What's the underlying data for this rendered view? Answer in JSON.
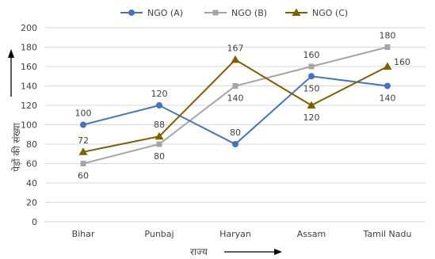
{
  "chart_data": {
    "type": "line",
    "categories": [
      "Bihar",
      "Punbaj",
      "Haryan",
      "Assam",
      "Tamil Nadu"
    ],
    "series": [
      {
        "name": "NGO (A)",
        "values": [
          100,
          120,
          80,
          150,
          140
        ],
        "color": "#4472C4",
        "marker": "circle"
      },
      {
        "name": "NGO (B)",
        "values": [
          60,
          80,
          140,
          160,
          180
        ],
        "color": "#A5A5A5",
        "marker": "square"
      },
      {
        "name": "NGO (C)",
        "values": [
          72,
          88,
          167,
          120,
          160
        ],
        "color": "#7F6000",
        "marker": "triangle"
      }
    ],
    "data_labels": [
      {
        "series": 0,
        "point": 0,
        "text": "100",
        "pos": "above"
      },
      {
        "series": 0,
        "point": 1,
        "text": "120",
        "pos": "above"
      },
      {
        "series": 0,
        "point": 2,
        "text": "80",
        "pos": "above"
      },
      {
        "series": 0,
        "point": 3,
        "text": "150",
        "pos": "below"
      },
      {
        "series": 0,
        "point": 4,
        "text": "140",
        "pos": "below"
      },
      {
        "series": 1,
        "point": 0,
        "text": "60",
        "pos": "below"
      },
      {
        "series": 1,
        "point": 1,
        "text": "80",
        "pos": "below"
      },
      {
        "series": 1,
        "point": 2,
        "text": "140",
        "pos": "below"
      },
      {
        "series": 1,
        "point": 3,
        "text": "160",
        "pos": "above"
      },
      {
        "series": 1,
        "point": 4,
        "text": "180",
        "pos": "above"
      },
      {
        "series": 2,
        "point": 0,
        "text": "72",
        "pos": "above"
      },
      {
        "series": 2,
        "point": 1,
        "text": "88",
        "pos": "above"
      },
      {
        "series": 2,
        "point": 2,
        "text": "167",
        "pos": "above"
      },
      {
        "series": 2,
        "point": 3,
        "text": "120",
        "pos": "below"
      },
      {
        "series": 2,
        "point": 4,
        "text": "160",
        "pos": "right"
      }
    ],
    "ylim": [
      0,
      200
    ],
    "yticks": [
      0,
      20,
      40,
      60,
      80,
      100,
      120,
      140,
      160,
      180,
      200
    ],
    "xlabel": "राज्य",
    "ylabel": "पेड़ों की संख्या",
    "grid": true,
    "legend_position": "top"
  }
}
